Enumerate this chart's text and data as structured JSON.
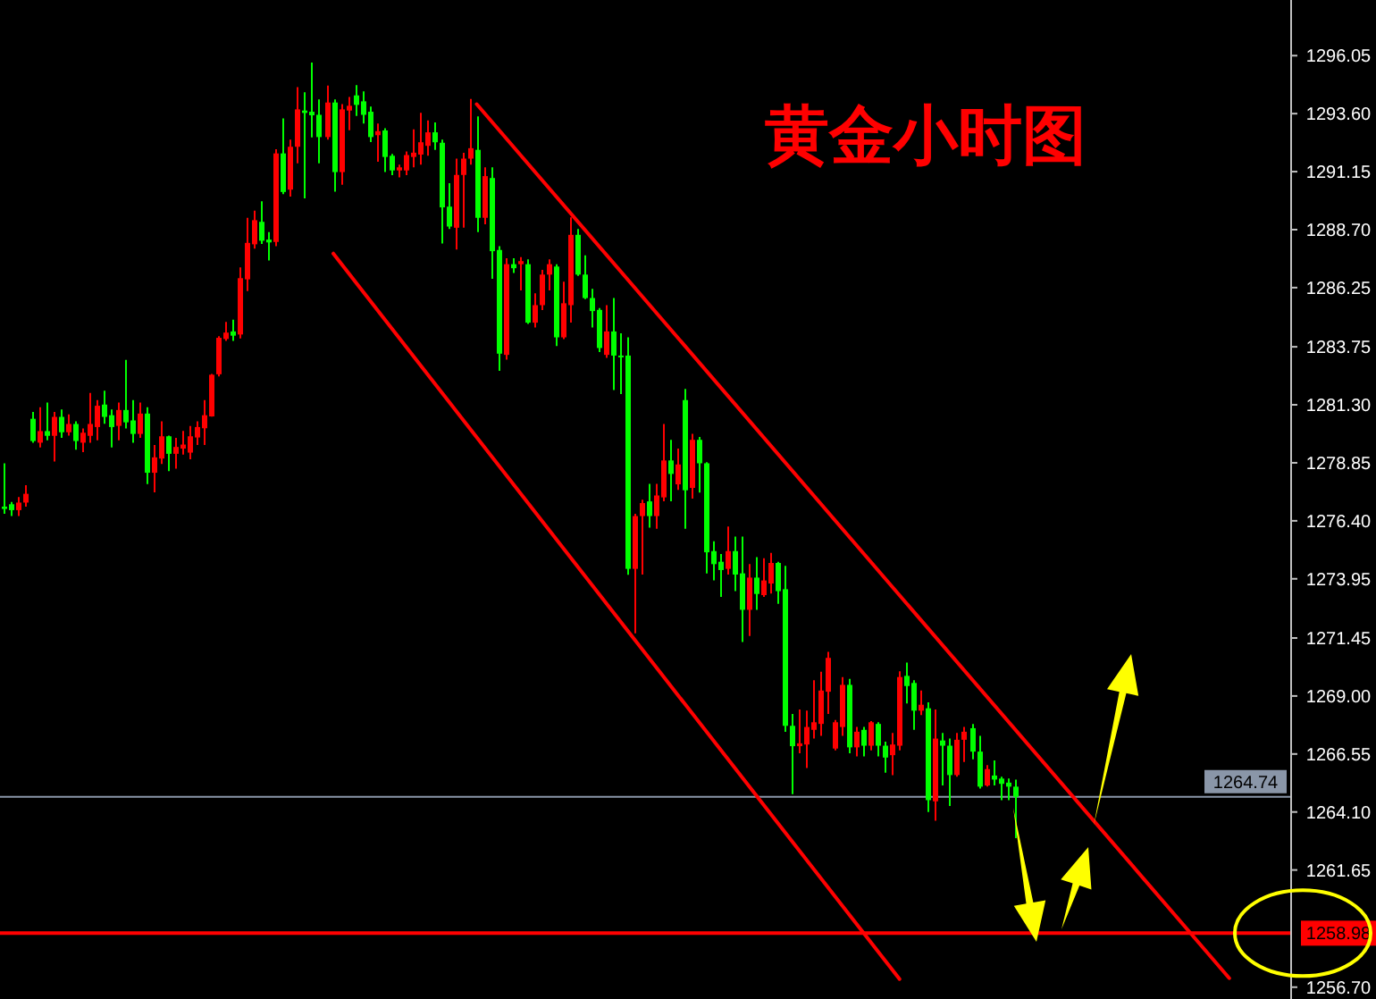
{
  "chart_data": {
    "type": "candlestick",
    "title": "黄金小时图",
    "categories": [
      null,
      null,
      null,
      null,
      null,
      null,
      null,
      null,
      null,
      null,
      null,
      null,
      null,
      null,
      null,
      null,
      null,
      null,
      null,
      null,
      null,
      null,
      null,
      null,
      null,
      null,
      null,
      null,
      null,
      null,
      null,
      null,
      null,
      null,
      null,
      null,
      null,
      null,
      null,
      null,
      null,
      null,
      null,
      null,
      null,
      null,
      null,
      null,
      null,
      null,
      null,
      null,
      null,
      null,
      null,
      null,
      null,
      null,
      null,
      null,
      null,
      null,
      null,
      null,
      null,
      null,
      null,
      null,
      null,
      null,
      null,
      null,
      null,
      null,
      null,
      null,
      null,
      null,
      null,
      null,
      null,
      null,
      null,
      null,
      null,
      null,
      null,
      null,
      null,
      null,
      null,
      null,
      null,
      null,
      null,
      null,
      null,
      null,
      null,
      null,
      null,
      null,
      null,
      null,
      null,
      null,
      null,
      null,
      null,
      null,
      null,
      null,
      null,
      null,
      null,
      null,
      null,
      null,
      null,
      null,
      null,
      null,
      null,
      null,
      null,
      null,
      null,
      null,
      null,
      null,
      null,
      null,
      null,
      null,
      null,
      null,
      null,
      null,
      null,
      null,
      null,
      null,
      null,
      null,
      null,
      null,
      null,
      null,
      null,
      null,
      null,
      null,
      null,
      null,
      null,
      null,
      null,
      null,
      null,
      null,
      null,
      null,
      null,
      null,
      null,
      null,
      null,
      null,
      null,
      null,
      null,
      null,
      null,
      null,
      null,
      null,
      null,
      null,
      null,
      null
    ],
    "ohlc": [
      [
        1277.0,
        1278.83,
        1276.7,
        1276.9
      ],
      [
        1277.1,
        1277.2,
        1276.6,
        1276.85
      ],
      [
        1276.85,
        1277.4,
        1276.6,
        1277.17
      ],
      [
        1277.17,
        1277.9,
        1277.0,
        1277.54
      ],
      [
        1280.71,
        1281.0,
        1279.7,
        1279.77
      ],
      [
        1279.7,
        1281.2,
        1279.5,
        1280.19
      ],
      [
        1280.19,
        1281.4,
        1279.8,
        1279.99
      ],
      [
        1279.99,
        1281.0,
        1278.9,
        1280.79
      ],
      [
        1280.79,
        1281.1,
        1279.9,
        1280.14
      ],
      [
        1280.14,
        1280.9,
        1280.0,
        1280.49
      ],
      [
        1280.49,
        1280.6,
        1279.4,
        1279.77
      ],
      [
        1279.7,
        1280.3,
        1279.3,
        1280.12
      ],
      [
        1279.99,
        1281.8,
        1279.7,
        1280.49
      ],
      [
        1280.36,
        1281.5,
        1279.8,
        1281.26
      ],
      [
        1281.31,
        1281.9,
        1280.5,
        1280.79
      ],
      [
        1280.86,
        1281.1,
        1279.5,
        1280.36
      ],
      [
        1280.41,
        1281.4,
        1279.8,
        1281.08
      ],
      [
        1281.08,
        1283.2,
        1280.3,
        1280.56
      ],
      [
        1280.64,
        1281.5,
        1279.7,
        1280.07
      ],
      [
        1280.07,
        1281.4,
        1279.9,
        1280.93
      ],
      [
        1280.93,
        1281.2,
        1277.95,
        1278.43
      ],
      [
        1278.43,
        1279.6,
        1277.6,
        1279.08
      ],
      [
        1279.03,
        1280.6,
        1278.8,
        1279.97
      ],
      [
        1279.97,
        1280.0,
        1278.5,
        1279.23
      ],
      [
        1279.23,
        1279.9,
        1278.6,
        1279.52
      ],
      [
        1279.45,
        1280.2,
        1279.2,
        1279.62
      ],
      [
        1279.28,
        1280.4,
        1279.0,
        1279.97
      ],
      [
        1279.92,
        1280.6,
        1279.6,
        1280.36
      ],
      [
        1280.31,
        1281.5,
        1279.6,
        1280.86
      ],
      [
        1280.81,
        1282.6,
        1280.8,
        1282.57
      ],
      [
        1282.59,
        1284.2,
        1282.5,
        1284.13
      ],
      [
        1284.08,
        1284.8,
        1284.0,
        1284.35
      ],
      [
        1284.4,
        1284.9,
        1284.0,
        1284.22
      ],
      [
        1284.27,
        1287.1,
        1284.1,
        1286.65
      ],
      [
        1286.6,
        1289.2,
        1286.1,
        1288.14
      ],
      [
        1288.08,
        1289.5,
        1287.9,
        1289.1
      ],
      [
        1289.03,
        1289.9,
        1288.1,
        1288.23
      ],
      [
        1288.28,
        1288.6,
        1287.4,
        1288.16
      ],
      [
        1288.18,
        1292.1,
        1288.0,
        1291.92
      ],
      [
        1291.92,
        1293.4,
        1290.2,
        1290.29
      ],
      [
        1290.39,
        1292.5,
        1290.1,
        1292.2
      ],
      [
        1292.2,
        1294.72,
        1291.5,
        1293.78
      ],
      [
        1293.73,
        1294.5,
        1290.02,
        1293.63
      ],
      [
        1293.68,
        1295.76,
        1292.6,
        1293.53
      ],
      [
        1293.55,
        1294.2,
        1291.5,
        1292.61
      ],
      [
        1292.61,
        1294.79,
        1292.5,
        1294.07
      ],
      [
        1294.07,
        1294.2,
        1290.3,
        1291.13
      ],
      [
        1291.13,
        1294.0,
        1290.6,
        1293.78
      ],
      [
        1293.73,
        1294.3,
        1292.9,
        1293.93
      ],
      [
        1294.37,
        1294.8,
        1293.5,
        1293.97
      ],
      [
        1294.12,
        1294.54,
        1293.18,
        1293.55
      ],
      [
        1293.68,
        1293.9,
        1292.4,
        1292.61
      ],
      [
        1292.69,
        1293.18,
        1291.57,
        1292.86
      ],
      [
        1292.89,
        1292.98,
        1291.13,
        1291.77
      ],
      [
        1291.82,
        1291.9,
        1291.0,
        1291.2
      ],
      [
        1291.2,
        1291.45,
        1290.91,
        1291.33
      ],
      [
        1291.2,
        1292.0,
        1291.0,
        1291.85
      ],
      [
        1291.77,
        1292.94,
        1291.33,
        1291.95
      ],
      [
        1291.87,
        1293.63,
        1291.45,
        1292.39
      ],
      [
        1292.24,
        1293.31,
        1291.82,
        1292.81
      ],
      [
        1292.81,
        1293.23,
        1292.07,
        1292.39
      ],
      [
        1292.37,
        1292.5,
        1288.11,
        1289.64
      ],
      [
        1289.67,
        1290.66,
        1288.73,
        1288.83
      ],
      [
        1288.78,
        1291.7,
        1287.86,
        1291.01
      ],
      [
        1291.01,
        1291.95,
        1288.78,
        1291.7
      ],
      [
        1291.7,
        1294.22,
        1291.45,
        1292.14
      ],
      [
        1292.07,
        1293.48,
        1288.6,
        1289.2
      ],
      [
        1289.2,
        1291.33,
        1288.93,
        1290.96
      ],
      [
        1290.88,
        1291.33,
        1286.62,
        1287.79
      ],
      [
        1287.84,
        1288.0,
        1282.74,
        1283.46
      ],
      [
        1283.41,
        1287.49,
        1283.21,
        1287.24
      ],
      [
        1287.24,
        1287.49,
        1286.87,
        1287.07
      ],
      [
        1287.24,
        1287.54,
        1286.13,
        1287.37
      ],
      [
        1287.24,
        1287.44,
        1284.72,
        1284.77
      ],
      [
        1284.77,
        1286.01,
        1284.57,
        1285.51
      ],
      [
        1285.51,
        1287.0,
        1285.3,
        1286.8
      ],
      [
        1286.8,
        1287.44,
        1286.13,
        1287.24
      ],
      [
        1287.14,
        1287.24,
        1283.78,
        1284.15
      ],
      [
        1284.15,
        1286.5,
        1284.08,
        1285.59
      ],
      [
        1285.51,
        1289.22,
        1284.77,
        1288.48
      ],
      [
        1288.48,
        1288.73,
        1286.75,
        1286.8
      ],
      [
        1286.8,
        1287.61,
        1285.76,
        1285.81
      ],
      [
        1285.81,
        1286.2,
        1284.57,
        1285.26
      ],
      [
        1285.31,
        1285.39,
        1283.53,
        1283.7
      ],
      [
        1283.41,
        1285.51,
        1283.28,
        1284.4
      ],
      [
        1284.4,
        1285.81,
        1281.92,
        1283.38
      ],
      [
        1283.38,
        1284.32,
        1281.75,
        1283.33
      ],
      [
        1283.38,
        1284.15,
        1274.12,
        1274.37
      ],
      [
        1274.37,
        1276.7,
        1271.65,
        1276.6
      ],
      [
        1276.6,
        1277.29,
        1274.13,
        1277.15
      ],
      [
        1277.22,
        1277.96,
        1276.11,
        1276.6
      ],
      [
        1276.6,
        1277.96,
        1276.06,
        1277.47
      ],
      [
        1277.39,
        1280.49,
        1277.22,
        1278.95
      ],
      [
        1278.95,
        1279.82,
        1277.22,
        1278.38
      ],
      [
        1277.94,
        1279.45,
        1277.71,
        1278.78
      ],
      [
        1281.5,
        1281.97,
        1276.06,
        1277.69
      ],
      [
        1277.79,
        1280.07,
        1277.34,
        1279.82
      ],
      [
        1279.82,
        1279.94,
        1277.59,
        1278.83
      ],
      [
        1278.83,
        1278.88,
        1274.18,
        1275.07
      ],
      [
        1275.12,
        1275.54,
        1273.88,
        1274.57
      ],
      [
        1274.67,
        1275.0,
        1273.19,
        1274.32
      ],
      [
        1274.37,
        1276.16,
        1274.13,
        1275.12
      ],
      [
        1275.12,
        1275.73,
        1273.43,
        1274.13
      ],
      [
        1274.18,
        1275.73,
        1271.28,
        1272.64
      ],
      [
        1272.64,
        1274.57,
        1271.53,
        1274.0
      ],
      [
        1274.0,
        1274.87,
        1272.64,
        1273.31
      ],
      [
        1273.26,
        1274.82,
        1273.19,
        1273.88
      ],
      [
        1273.75,
        1275.04,
        1273.33,
        1274.62
      ],
      [
        1274.62,
        1274.67,
        1272.89,
        1273.43
      ],
      [
        1273.51,
        1274.5,
        1267.49,
        1267.74
      ],
      [
        1267.74,
        1268.24,
        1264.85,
        1266.88
      ],
      [
        1266.88,
        1268.43,
        1266.58,
        1267.0
      ],
      [
        1266.95,
        1268.38,
        1265.96,
        1267.69
      ],
      [
        1267.57,
        1269.67,
        1267.2,
        1267.89
      ],
      [
        1267.82,
        1270.02,
        1267.32,
        1269.23
      ],
      [
        1269.18,
        1270.86,
        1268.24,
        1270.61
      ],
      [
        1266.78,
        1267.99,
        1266.7,
        1267.89
      ],
      [
        1267.69,
        1269.8,
        1267.32,
        1269.47
      ],
      [
        1269.47,
        1269.72,
        1266.58,
        1266.83
      ],
      [
        1266.83,
        1267.69,
        1266.45,
        1267.49
      ],
      [
        1267.57,
        1267.69,
        1266.45,
        1266.9
      ],
      [
        1266.9,
        1267.94,
        1266.7,
        1267.89
      ],
      [
        1267.82,
        1267.89,
        1266.45,
        1266.9
      ],
      [
        1266.9,
        1267.07,
        1265.76,
        1266.4
      ],
      [
        1266.5,
        1267.44,
        1265.66,
        1266.95
      ],
      [
        1266.9,
        1270.04,
        1266.7,
        1269.8
      ],
      [
        1269.85,
        1270.41,
        1268.68,
        1269.42
      ],
      [
        1269.55,
        1269.67,
        1267.57,
        1268.38
      ],
      [
        1268.38,
        1269.23,
        1268.19,
        1268.63
      ],
      [
        1268.48,
        1268.73,
        1264.1,
        1264.6
      ],
      [
        1264.55,
        1268.43,
        1263.73,
        1267.2
      ],
      [
        1267.12,
        1267.44,
        1265.22,
        1266.9
      ],
      [
        1266.9,
        1267.2,
        1264.35,
        1265.66
      ],
      [
        1265.66,
        1267.44,
        1265.59,
        1267.15
      ],
      [
        1267.15,
        1267.69,
        1266.21,
        1267.49
      ],
      [
        1267.64,
        1267.82,
        1266.33,
        1266.65
      ],
      [
        1266.65,
        1267.32,
        1265.09,
        1265.17
      ],
      [
        1265.22,
        1266.08,
        1265.17,
        1265.91
      ],
      [
        1265.64,
        1266.28,
        1265.22,
        1265.47
      ],
      [
        1265.51,
        1265.59,
        1264.6,
        1265.29
      ],
      [
        1265.34,
        1265.51,
        1264.6,
        1265.17
      ],
      [
        1265.17,
        1265.47,
        1262.99,
        1264.74
      ],
      null,
      null,
      null,
      null,
      null,
      null,
      null,
      null,
      null,
      null,
      null,
      null,
      null,
      null,
      null,
      null,
      null,
      null,
      null,
      null,
      null,
      null,
      null,
      null,
      null,
      null,
      null,
      null,
      null,
      null,
      null,
      null,
      null,
      null,
      null,
      null,
      null,
      null
    ],
    "colors": [
      "#00ff00",
      "#00ff00",
      "#ff0000",
      "#ff0000",
      "#00ff00",
      "#ff0000",
      "#00ff00",
      "#ff0000",
      "#00ff00",
      "#ff0000",
      "#00ff00",
      "#ff0000",
      "#ff0000",
      "#ff0000",
      "#00ff00",
      "#00ff00",
      "#ff0000",
      "#00ff00",
      "#00ff00",
      "#ff0000",
      "#00ff00",
      "#ff0000",
      "#ff0000",
      "#00ff00",
      "#ff0000",
      "#ff0000",
      "#ff0000",
      "#ff0000",
      "#ff0000",
      "#ff0000",
      "#ff0000",
      "#ff0000",
      "#00ff00",
      "#ff0000",
      "#ff0000",
      "#ff0000",
      "#00ff00",
      "#00ff00",
      "#ff0000",
      "#00ff00",
      "#ff0000",
      "#ff0000",
      "#00ff00",
      "#00ff00",
      "#00ff00",
      "#ff0000",
      "#00ff00",
      "#ff0000",
      "#ff0000",
      "#00ff00",
      "#00ff00",
      "#00ff00",
      "#ff0000",
      "#00ff00",
      "#00ff00",
      "#ff0000",
      "#ff0000",
      "#ff0000",
      "#ff0000",
      "#ff0000",
      "#00ff00",
      "#00ff00",
      "#00ff00",
      "#ff0000",
      "#ff0000",
      "#ff0000",
      "#00ff00",
      "#ff0000",
      "#00ff00",
      "#00ff00",
      "#ff0000",
      "#00ff00",
      "#ff0000",
      "#00ff00",
      "#ff0000",
      "#ff0000",
      "#ff0000",
      "#00ff00",
      "#ff0000",
      "#ff0000",
      "#00ff00",
      "#00ff00",
      "#00ff00",
      "#00ff00",
      "#ff0000",
      "#00ff00",
      "#00ff00",
      "#00ff00",
      "#ff0000",
      "#ff0000",
      "#00ff00",
      "#ff0000",
      "#ff0000",
      "#00ff00",
      "#ff0000",
      "#00ff00",
      "#ff0000",
      "#00ff00",
      "#00ff00",
      "#00ff00",
      "#00ff00",
      "#ff0000",
      "#00ff00",
      "#00ff00",
      "#ff0000",
      "#00ff00",
      "#ff0000",
      "#ff0000",
      "#00ff00",
      "#00ff00",
      "#00ff00",
      "#ff0000",
      "#ff0000",
      "#ff0000",
      "#ff0000",
      "#ff0000",
      "#ff0000",
      "#ff0000",
      "#00ff00",
      "#ff0000",
      "#00ff00",
      "#ff0000",
      "#00ff00",
      "#00ff00",
      "#ff0000",
      "#ff0000",
      "#00ff00",
      "#00ff00",
      "#ff0000",
      "#00ff00",
      "#ff0000",
      "#00ff00",
      "#00ff00",
      "#ff0000",
      "#ff0000",
      "#00ff00",
      "#00ff00",
      "#ff0000",
      "#00ff00",
      "#00ff00",
      "#00ff00",
      "#00ff00",
      null,
      null,
      null,
      null,
      null,
      null,
      null,
      null,
      null,
      null,
      null,
      null,
      null,
      null,
      null,
      null,
      null,
      null,
      null,
      null,
      null,
      null,
      null,
      null,
      null,
      null,
      null,
      null,
      null,
      null,
      null,
      null,
      null,
      null,
      null,
      null,
      null,
      null
    ],
    "series": [
      {
        "type": "line",
        "color": "#ff0000",
        "values": [
          null,
          null,
          null,
          null,
          null,
          null,
          null,
          null,
          null,
          null,
          null,
          null,
          null,
          null,
          null,
          null,
          null,
          null,
          null,
          null,
          null,
          null,
          null,
          null,
          null,
          null,
          null,
          null,
          null,
          null,
          null,
          null,
          null,
          null,
          null,
          null,
          null,
          null,
          null,
          null,
          null,
          null,
          null,
          null,
          null,
          null,
          null,
          null,
          null,
          null,
          null,
          null,
          null,
          null,
          null,
          null,
          null,
          null,
          null,
          null,
          null,
          null,
          null,
          null,
          null,
          null,
          1294.0,
          null,
          null,
          null,
          null,
          null,
          null,
          null,
          null,
          null,
          null,
          null,
          null,
          null,
          null,
          null,
          null,
          null,
          null,
          null,
          null,
          null,
          null,
          null,
          null,
          null,
          null,
          null,
          null,
          null,
          null,
          null,
          null,
          null,
          null,
          null,
          null,
          null,
          null,
          null,
          null,
          null,
          null,
          null,
          null,
          null,
          null,
          null,
          null,
          null,
          null,
          null,
          null,
          null,
          null,
          null,
          null,
          null,
          null,
          null,
          null,
          null,
          null,
          null,
          null,
          null,
          null,
          null,
          null,
          null,
          null,
          null,
          null,
          null,
          null,
          null,
          null,
          null,
          null,
          null,
          null,
          null,
          null,
          null,
          null,
          null,
          null,
          null,
          null,
          null,
          null,
          null,
          null,
          null,
          null,
          null,
          null,
          null,
          null,
          null,
          null,
          null,
          null,
          null,
          null,
          1257.08,
          null,
          null,
          null,
          null,
          null,
          null,
          null,
          null
        ]
      },
      {
        "type": "line",
        "color": "#ff0000",
        "values": [
          null,
          null,
          null,
          null,
          null,
          null,
          null,
          null,
          null,
          null,
          null,
          null,
          null,
          null,
          null,
          null,
          null,
          null,
          null,
          null,
          null,
          null,
          null,
          null,
          null,
          null,
          null,
          null,
          null,
          null,
          null,
          null,
          null,
          null,
          null,
          null,
          null,
          null,
          null,
          null,
          null,
          null,
          null,
          null,
          null,
          null,
          1287.69,
          null,
          null,
          null,
          null,
          null,
          null,
          null,
          null,
          null,
          null,
          null,
          null,
          null,
          null,
          null,
          null,
          null,
          null,
          null,
          null,
          null,
          null,
          null,
          null,
          null,
          null,
          null,
          null,
          null,
          null,
          null,
          null,
          null,
          null,
          null,
          null,
          null,
          null,
          null,
          null,
          null,
          null,
          null,
          null,
          null,
          null,
          null,
          null,
          null,
          null,
          null,
          null,
          null,
          null,
          null,
          null,
          null,
          null,
          null,
          null,
          null,
          null,
          null,
          null,
          null,
          null,
          null,
          null,
          null,
          null,
          null,
          null,
          null,
          null,
          null,
          null,
          null,
          null,
          1257.04,
          null,
          null,
          null,
          null,
          null,
          null,
          null,
          null,
          null,
          null,
          null,
          null,
          null,
          null,
          null,
          null,
          null,
          null,
          null,
          null,
          null,
          null,
          null,
          null,
          null,
          null,
          null,
          null,
          null,
          null,
          null,
          null,
          null,
          null,
          null,
          null,
          null,
          null,
          null,
          null,
          null,
          null,
          null,
          null,
          null,
          null,
          null,
          null,
          null,
          null,
          null,
          null,
          null,
          null
        ]
      }
    ],
    "ylim": [
      1256.2,
      1298.4
    ],
    "yticks": [
      {
        "value": 1296.05,
        "label": "1296.05"
      },
      {
        "value": 1293.6,
        "label": "1293.60"
      },
      {
        "value": 1291.15,
        "label": "1291.15"
      },
      {
        "value": 1288.7,
        "label": "1288.70"
      },
      {
        "value": 1286.25,
        "label": "1286.25"
      },
      {
        "value": 1283.75,
        "label": "1283.75"
      },
      {
        "value": 1281.3,
        "label": "1281.30"
      },
      {
        "value": 1278.85,
        "label": "1278.85"
      },
      {
        "value": 1276.4,
        "label": "1276.40"
      },
      {
        "value": 1273.95,
        "label": "1273.95"
      },
      {
        "value": 1271.45,
        "label": "1271.45"
      },
      {
        "value": 1269,
        "label": "1269.00"
      },
      {
        "value": 1266.55,
        "label": "1266.55"
      },
      {
        "value": 1264.1,
        "label": "1264.10"
      },
      {
        "value": 1261.65,
        "label": "1261.65"
      },
      {
        "value": 1256.7,
        "label": "1256.70"
      }
    ],
    "tick_labels": "y",
    "ref_lines": [
      {
        "axis": "y",
        "value": 1264.74,
        "label": "1264.74",
        "color": "#8a96a8"
      },
      {
        "axis": "y",
        "value": 1258.98,
        "label": "1258.98",
        "color": "#ff0000"
      }
    ],
    "grid": false,
    "legend": false
  }
}
